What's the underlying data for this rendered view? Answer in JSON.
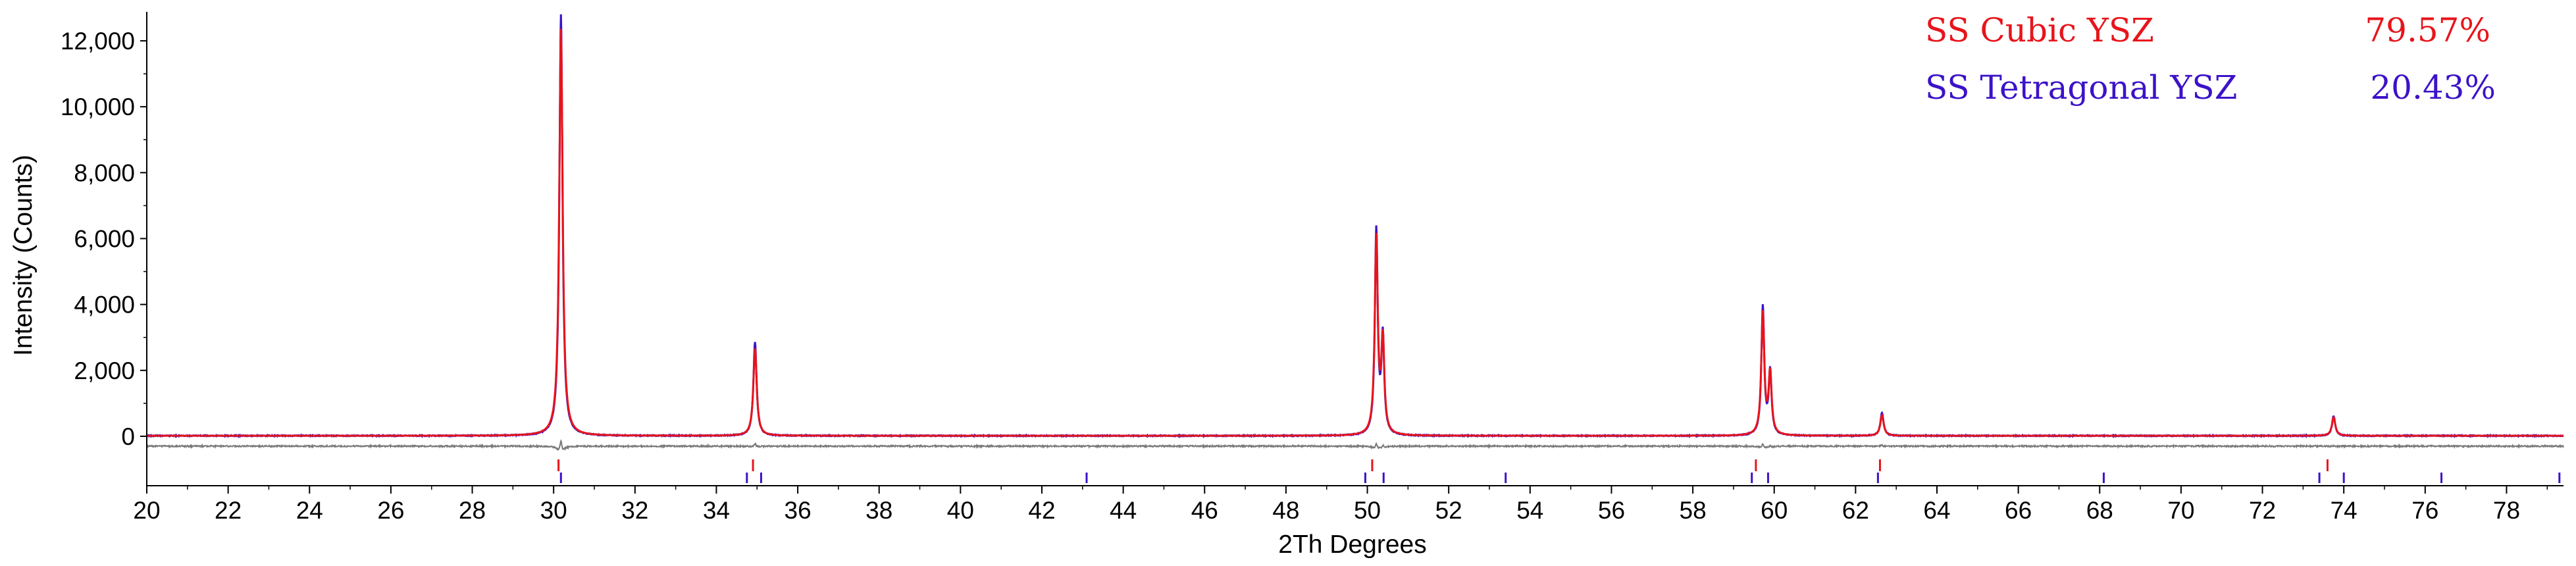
{
  "chart_data": {
    "type": "line",
    "xlabel": "2Th Degrees",
    "ylabel": "Intensity (Counts)",
    "xlim": [
      20,
      79.4
    ],
    "ylim": [
      -1500,
      12800
    ],
    "x_ticks": [
      20,
      22,
      24,
      26,
      28,
      30,
      32,
      34,
      36,
      38,
      40,
      42,
      44,
      46,
      48,
      50,
      52,
      54,
      56,
      58,
      60,
      62,
      64,
      66,
      68,
      70,
      72,
      74,
      76,
      78
    ],
    "y_ticks": [
      0,
      2000,
      4000,
      6000,
      8000,
      10000,
      12000
    ],
    "y_tick_labels": [
      "0",
      "2,000",
      "4,000",
      "6,000",
      "8,000",
      "10,000",
      "12,000"
    ],
    "legend_placement": "top-right",
    "colors": {
      "cubic": "#e8141b",
      "tetragonal": "#3c12c8",
      "difference": "#7a7a7a",
      "axis": "#000000"
    },
    "legend": [
      {
        "name": "SS Cubic YSZ",
        "value": "79.57%",
        "color": "#e8141b"
      },
      {
        "name": "SS Tetragonal YSZ",
        "value": "20.43%",
        "color": "#3c12c8"
      }
    ],
    "peaks": [
      {
        "x": 30.18,
        "observed": 12800,
        "fit": 12350
      },
      {
        "x": 34.95,
        "observed": 2850,
        "fit": 2650
      },
      {
        "x": 50.22,
        "observed": 6200,
        "fit": 5950
      },
      {
        "x": 50.38,
        "observed": 2900,
        "fit": 2800
      },
      {
        "x": 59.72,
        "observed": 3900,
        "fit": 3700
      },
      {
        "x": 59.9,
        "observed": 1900,
        "fit": 1850
      },
      {
        "x": 62.65,
        "observed": 700,
        "fit": 620
      },
      {
        "x": 73.75,
        "observed": 600,
        "fit": 560
      }
    ],
    "difference_baseline": -300,
    "reflection_marks": {
      "cubic": [
        30.12,
        34.9,
        50.12,
        59.55,
        62.6,
        73.6
      ],
      "tetragonal": [
        30.18,
        34.75,
        35.1,
        43.1,
        49.95,
        50.4,
        53.4,
        59.45,
        59.85,
        62.55,
        68.1,
        73.4,
        74.0,
        76.4,
        79.3
      ]
    }
  }
}
